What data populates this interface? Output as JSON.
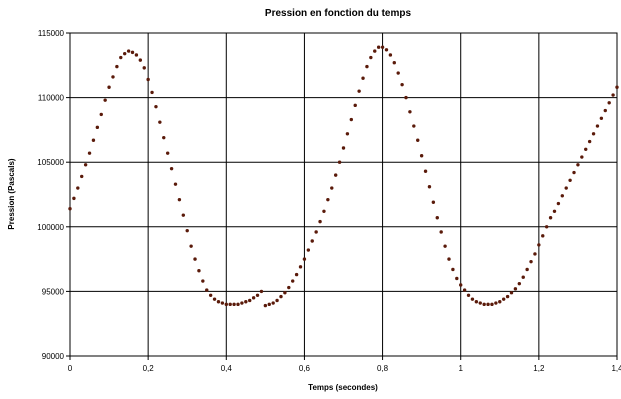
{
  "chart_data": {
    "type": "scatter",
    "title": "Pression en fonction du temps",
    "xlabel": "Temps (secondes)",
    "ylabel": "Pression (Pascals)",
    "xlim": [
      0,
      1.4
    ],
    "ylim": [
      90000,
      115000
    ],
    "grid": true,
    "legend": "none",
    "x_ticks": [
      "0",
      "0,2",
      "0,4",
      "0,6",
      "0,8",
      "1",
      "1,2",
      "1,4"
    ],
    "y_ticks": [
      "90000",
      "95000",
      "100000",
      "105000",
      "110000",
      "115000"
    ],
    "marker_color": "#5a1a0a",
    "series": [
      {
        "x": [
          0,
          0.01,
          0.02,
          0.03,
          0.04,
          0.05,
          0.06,
          0.07,
          0.08,
          0.09,
          0.1,
          0.11,
          0.12,
          0.13,
          0.14,
          0.15,
          0.16,
          0.17,
          0.18,
          0.19,
          0.2,
          0.21,
          0.22,
          0.23,
          0.24,
          0.25,
          0.26,
          0.27,
          0.28,
          0.29,
          0.3,
          0.31,
          0.32,
          0.33,
          0.34,
          0.35,
          0.36,
          0.37,
          0.38,
          0.39,
          0.4,
          0.41,
          0.42,
          0.43,
          0.44,
          0.45,
          0.46,
          0.47,
          0.48,
          0.49,
          0.5,
          0.51,
          0.52,
          0.53,
          0.54,
          0.55,
          0.56,
          0.57,
          0.58,
          0.59,
          0.6,
          0.61,
          0.62,
          0.63,
          0.64,
          0.65,
          0.66,
          0.67,
          0.68,
          0.69,
          0.7,
          0.71,
          0.72,
          0.73,
          0.74,
          0.75,
          0.76,
          0.77,
          0.78,
          0.79,
          0.8,
          0.81,
          0.82,
          0.83,
          0.84,
          0.85,
          0.86,
          0.87,
          0.88,
          0.89,
          0.9,
          0.91,
          0.92,
          0.93,
          0.94,
          0.95,
          0.96,
          0.97,
          0.98,
          0.99,
          1,
          1.01,
          1.02,
          1.03,
          1.04,
          1.05,
          1.06,
          1.07,
          1.08,
          1.09,
          1.1,
          1.11,
          1.12,
          1.13,
          1.14,
          1.15,
          1.16,
          1.17,
          1.18,
          1.19,
          1.2,
          1.21,
          1.22,
          1.23,
          1.24,
          1.25,
          1.26,
          1.27,
          1.28,
          1.29,
          1.3,
          1.31,
          1.32,
          1.33,
          1.34,
          1.35,
          1.36,
          1.37,
          1.38,
          1.39,
          1.4
        ],
        "y": [
          101400,
          102200,
          103000,
          103900,
          104800,
          105700,
          106700,
          107700,
          108700,
          109800,
          110800,
          111600,
          112400,
          113100,
          113400,
          113600,
          113500,
          113300,
          112900,
          112300,
          111400,
          110400,
          109300,
          108100,
          106900,
          105700,
          104500,
          103300,
          102100,
          100900,
          99700,
          98500,
          97500,
          96600,
          95800,
          95100,
          94700,
          94400,
          94200,
          94100,
          94000,
          94000,
          94000,
          94000,
          94100,
          94200,
          94300,
          94500,
          94700,
          95000,
          93900,
          94000,
          94100,
          94300,
          94600,
          94900,
          95300,
          95800,
          96300,
          96900,
          97500,
          98200,
          98900,
          99600,
          100400,
          101200,
          102100,
          103000,
          104000,
          105000,
          106100,
          107200,
          108300,
          109400,
          110500,
          111500,
          112400,
          113100,
          113600,
          113900,
          113900,
          113700,
          113300,
          112700,
          111900,
          111000,
          110000,
          108900,
          107800,
          106700,
          105500,
          104300,
          103100,
          101900,
          100700,
          99600,
          98500,
          97500,
          96700,
          96000,
          95500,
          95100,
          94700,
          94400,
          94200,
          94100,
          94000,
          94000,
          94000,
          94100,
          94200,
          94400,
          94600,
          94900,
          95200,
          95600,
          96100,
          96700,
          97300,
          97900,
          98600,
          99300,
          100000,
          100700,
          101200,
          101800,
          102400,
          103000,
          103600,
          104200,
          104800,
          105400,
          106000,
          106600,
          107200,
          107800,
          108400,
          109000,
          109600,
          110200,
          110800
        ]
      }
    ]
  }
}
